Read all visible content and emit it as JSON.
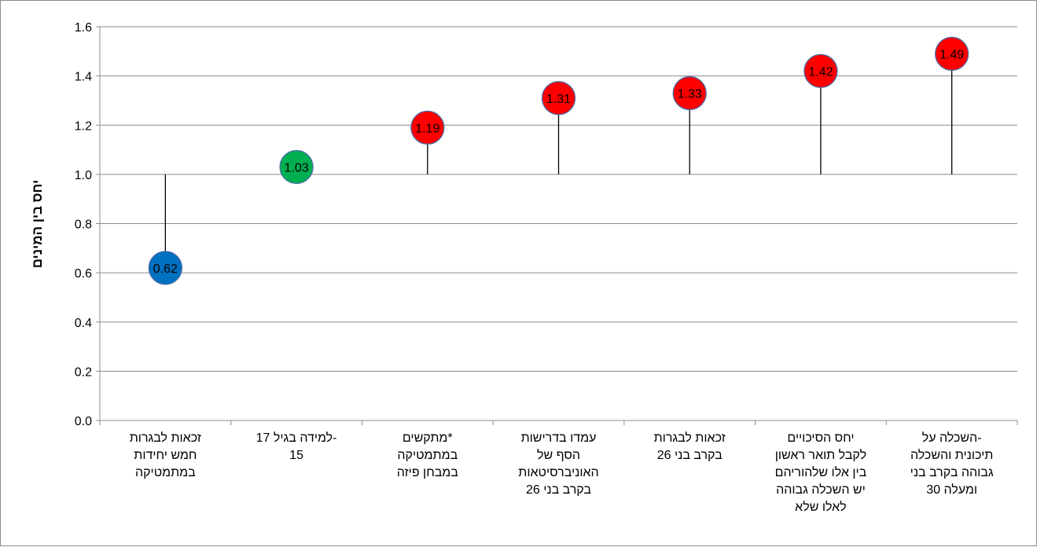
{
  "chart_data": {
    "type": "scatter",
    "subtype": "lollipop",
    "title": "",
    "xlabel": "",
    "ylabel": "יחס בין המינים",
    "baseline": 1.0,
    "ylim": [
      0,
      1.6
    ],
    "yticks": [
      "0.0",
      "0.2",
      "0.4",
      "0.6",
      "0.8",
      "1.0",
      "1.2",
      "1.4",
      "1.6"
    ],
    "grid": true,
    "legend": "none",
    "categories": [
      [
        "זכאות לבגרות",
        "חמש יחידות",
        "במתמטיקה"
      ],
      [
        "למידה בגיל 17-",
        "15"
      ],
      [
        "מתקשים*",
        "במתמטיקה",
        "במבחן פיזה"
      ],
      [
        "עמדו בדרישות",
        "הסף של",
        "האוניברסיטאות",
        "בקרב בני 26"
      ],
      [
        "זכאות לבגרות",
        "בקרב בני 26"
      ],
      [
        "יחס הסיכויים",
        "לקבל תואר ראשון",
        "בין אלו שלהוריהם",
        "יש השכלה גבוהה",
        "לאלו שלא"
      ],
      [
        "השכלה על-",
        "תיכונית והשכלה",
        "גבוהה בקרב בני",
        "30 ומעלה"
      ]
    ],
    "values": [
      0.62,
      1.03,
      1.19,
      1.31,
      1.33,
      1.42,
      1.49
    ],
    "data_labels": [
      "0.62",
      "1.03",
      "1.19",
      "1.31",
      "1.33",
      "1.42",
      "1.49"
    ],
    "marker_colors": [
      "#0070C0",
      "#00B050",
      "#FF0000",
      "#FF0000",
      "#FF0000",
      "#FF0000",
      "#FF0000"
    ]
  }
}
